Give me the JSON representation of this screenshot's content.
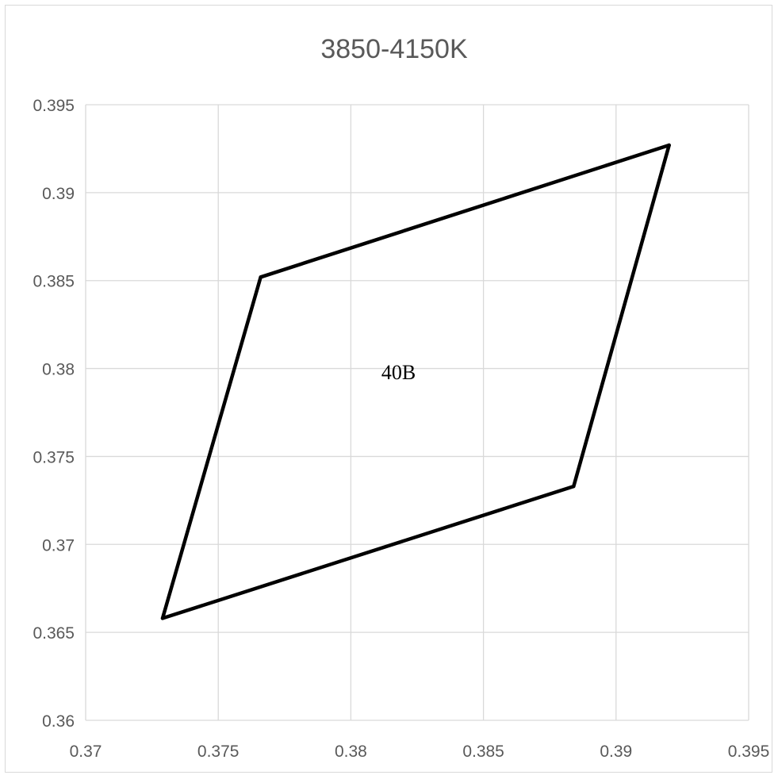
{
  "chart_data": {
    "type": "scatter",
    "title": "3850-4150K",
    "xlabel": "",
    "ylabel": "",
    "xlim": [
      0.37,
      0.395
    ],
    "ylim": [
      0.36,
      0.395
    ],
    "x_ticks": [
      0.37,
      0.375,
      0.38,
      0.385,
      0.39,
      0.395
    ],
    "y_ticks": [
      0.36,
      0.365,
      0.37,
      0.375,
      0.38,
      0.385,
      0.39,
      0.395
    ],
    "x_tick_labels": [
      "0.37",
      "0.375",
      "0.38",
      "0.385",
      "0.39",
      "0.395"
    ],
    "y_tick_labels": [
      "0.36",
      "0.365",
      "0.37",
      "0.375",
      "0.38",
      "0.385",
      "0.39",
      "0.395"
    ],
    "grid": true,
    "legend": "none",
    "series": [
      {
        "points": [
          {
            "x": 0.3729,
            "y": 0.3658
          },
          {
            "x": 0.3766,
            "y": 0.3852
          },
          {
            "x": 0.392,
            "y": 0.3927
          },
          {
            "x": 0.3884,
            "y": 0.3733
          }
        ],
        "closed": true,
        "color": "#000000"
      }
    ],
    "annotations": [
      {
        "text": "40B",
        "x": 0.3818,
        "y": 0.3798
      }
    ]
  }
}
